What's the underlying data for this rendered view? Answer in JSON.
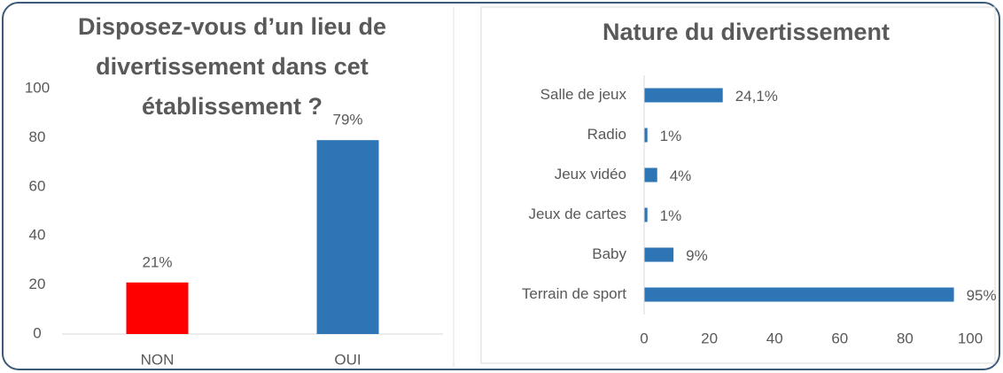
{
  "chart_data": [
    {
      "type": "bar",
      "title": [
        "Disposez-vous d’un lieu de",
        "divertissement dans cet",
        "établissement ?"
      ],
      "categories": [
        "NON",
        "OUI"
      ],
      "values": [
        21,
        79
      ],
      "value_labels": [
        "21%",
        "79%"
      ],
      "colors": [
        "#ff0000",
        "#2e75b6"
      ],
      "ylim": [
        0,
        100
      ],
      "yticks": [
        0,
        20,
        40,
        60,
        80,
        100
      ],
      "grid": false
    },
    {
      "type": "hbar",
      "title": "Nature du divertissement",
      "categories": [
        "Salle de jeux",
        "Radio",
        "Jeux vidéo",
        "Jeux de cartes",
        "Baby",
        "Terrain de sport"
      ],
      "values": [
        24.1,
        1,
        4,
        1,
        9,
        95
      ],
      "value_labels": [
        "24,1%",
        "1%",
        "4%",
        "1%",
        "9%",
        "95%"
      ],
      "color": "#2e75b6",
      "xlim": [
        0,
        100
      ],
      "xticks": [
        0,
        20,
        40,
        60,
        80,
        100
      ],
      "grid": false
    }
  ]
}
